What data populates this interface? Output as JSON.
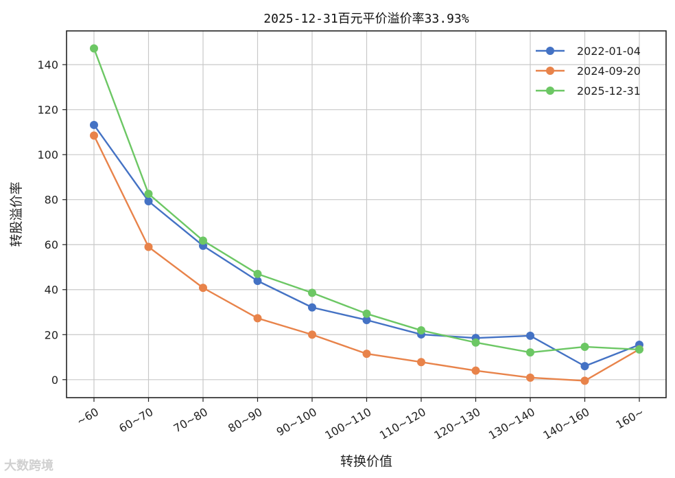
{
  "chart_data": {
    "type": "line",
    "title": "2025-12-31百元平价溢价率33.93%",
    "xlabel": "转换价值",
    "ylabel": "转股溢价率",
    "categories": [
      "~60",
      "60~70",
      "70~80",
      "80~90",
      "90~100",
      "100~110",
      "110~120",
      "120~130",
      "130~140",
      "140~160",
      "160~"
    ],
    "ylim": [
      -8,
      155
    ],
    "yticks": [
      0,
      20,
      40,
      60,
      80,
      100,
      120,
      140
    ],
    "grid": true,
    "legend_position": "top-right",
    "series": [
      {
        "name": "2022-01-04",
        "color": "#4472c4",
        "values": [
          113.2,
          79.3,
          59.5,
          43.9,
          32.1,
          26.5,
          20.1,
          18.5,
          19.5,
          6.0,
          15.5
        ]
      },
      {
        "name": "2024-09-20",
        "color": "#e8834a",
        "values": [
          108.5,
          59.0,
          40.8,
          27.3,
          20.0,
          11.5,
          7.8,
          4.0,
          0.9,
          -0.5,
          13.5
        ]
      },
      {
        "name": "2025-12-31",
        "color": "#6cc764",
        "values": [
          147.2,
          82.6,
          61.8,
          47.0,
          38.6,
          29.3,
          21.9,
          16.5,
          12.1,
          14.6,
          13.4
        ]
      }
    ]
  },
  "watermark": "大数跨境"
}
